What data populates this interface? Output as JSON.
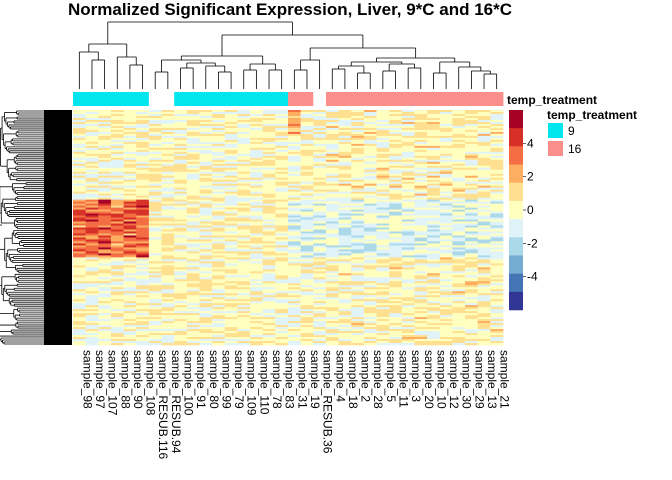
{
  "chart_data": {
    "type": "heatmap",
    "title": "Normalized Significant Expression, Liver, 9*C and 16*C",
    "columns": [
      "sample_98",
      "sample_97",
      "sample_107",
      "sample_88",
      "sample_90",
      "sample_108",
      "sample_RESUB.116",
      "sample_RESUB.94",
      "sample_100",
      "sample_91",
      "sample_80",
      "sample_99",
      "sample_79",
      "sample_109",
      "sample_110",
      "sample_78",
      "sample_83",
      "sample_31",
      "sample_19",
      "sample_RESUB.36",
      "sample_4",
      "sample_18",
      "sample_2",
      "sample_28",
      "sample_5",
      "sample_11",
      "sample_3",
      "sample_20",
      "sample_10",
      "sample_12",
      "sample_30",
      "sample_29",
      "sample_13",
      "sample_21"
    ],
    "temp_treatment": [
      "9",
      "9",
      "9",
      "9",
      "9",
      "9",
      "",
      "",
      "9",
      "9",
      "9",
      "9",
      "9",
      "9",
      "9",
      "9",
      "9",
      "16",
      "16",
      "",
      "16",
      "16",
      "16",
      "16",
      "16",
      "16",
      "16",
      "16",
      "16",
      "16",
      "16",
      "16",
      "16",
      "16"
    ],
    "annotation_track_label": "temp_treatment",
    "annotation_legend": {
      "title": "temp_treatment",
      "items": [
        {
          "label": "9",
          "color": "#00E5EE"
        },
        {
          "label": "16",
          "color": "#FA8E8B"
        }
      ]
    },
    "color_scale": {
      "ticks": [
        "4",
        "2",
        "0",
        "-2",
        "-4"
      ],
      "tick_values": [
        4,
        2,
        0,
        -2,
        -4
      ],
      "range": [
        -6,
        6
      ],
      "colors": [
        "#313695",
        "#4575B4",
        "#74ADD1",
        "#ABD9E9",
        "#E0F3F8",
        "#FFFFBF",
        "#FEE090",
        "#FDAE61",
        "#F46D43",
        "#D73027",
        "#A50026"
      ]
    },
    "row_dendrogram": true,
    "column_dendrogram": true
  }
}
